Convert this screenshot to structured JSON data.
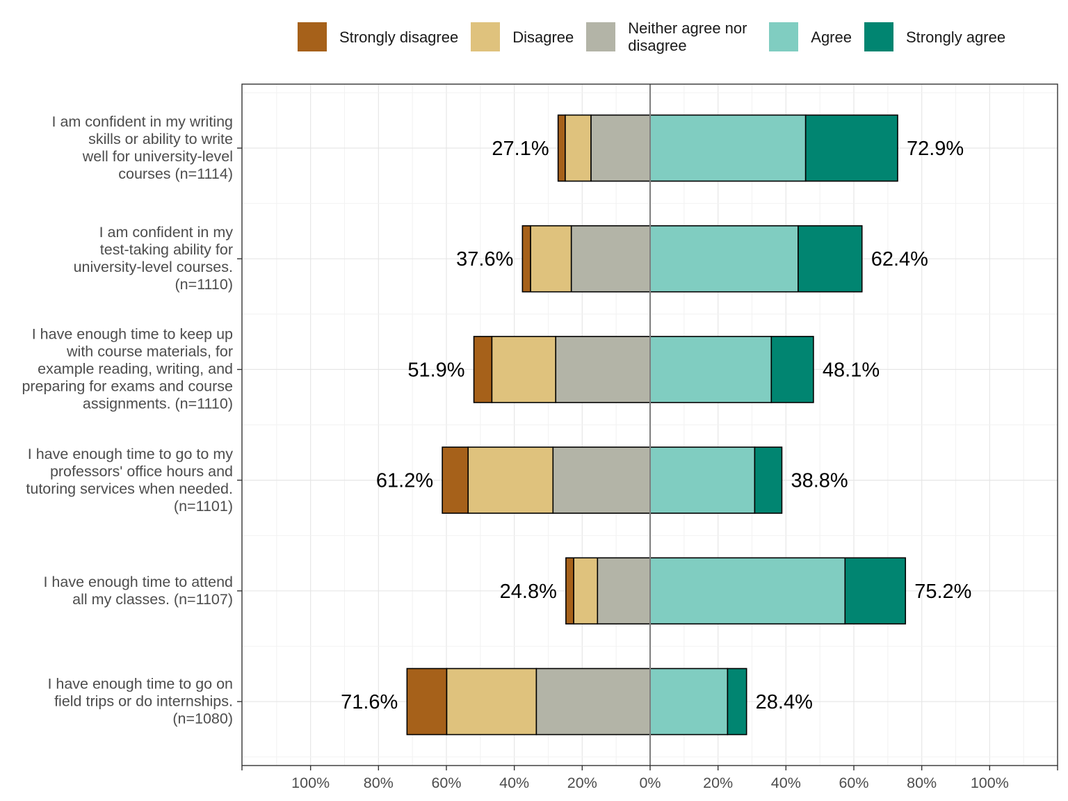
{
  "legend": [
    {
      "label": "Strongly disagree",
      "color": "#A6611A"
    },
    {
      "label": "Disagree",
      "color": "#DFC27D"
    },
    {
      "label": "Neither agree nor disagree",
      "color": "#B3B4A7"
    },
    {
      "label": "Agree",
      "color": "#80CDC1"
    },
    {
      "label": "Strongly agree",
      "color": "#018571"
    }
  ],
  "chart_data": {
    "type": "bar",
    "orientation": "horizontal",
    "stacked": "diverging",
    "xlabel": "",
    "ylabel": "",
    "xlim": [
      -120,
      120
    ],
    "x_ticks": [
      -100,
      -80,
      -60,
      -40,
      -20,
      0,
      20,
      40,
      60,
      80,
      100
    ],
    "x_tick_labels": [
      "100%",
      "80%",
      "60%",
      "40%",
      "20%",
      "0%",
      "20%",
      "40%",
      "60%",
      "80%",
      "100%"
    ],
    "grid": true,
    "legend_position": "top",
    "categories": [
      {
        "lines": [
          "I am confident in my writing",
          "skills or ability to write",
          "well for university-level",
          "courses (n=1114)"
        ]
      },
      {
        "lines": [
          "I am confident in my",
          "test-taking ability for",
          "university-level courses.",
          "(n=1110)"
        ]
      },
      {
        "lines": [
          "I have enough time to keep up",
          "with course materials, for",
          "example reading, writing, and",
          "preparing for exams and course",
          "assignments. (n=1110)"
        ]
      },
      {
        "lines": [
          "I have enough time to go to my",
          "professors' office hours and",
          "tutoring services when needed.",
          "(n=1101)"
        ]
      },
      {
        "lines": [
          "I have enough time to attend",
          "all my classes. (n=1107)"
        ]
      },
      {
        "lines": [
          "I have enough time to go on",
          "field trips or do internships.",
          "(n=1080)"
        ]
      }
    ],
    "series": [
      {
        "name": "Strongly disagree",
        "values": [
          2.1,
          2.4,
          5.3,
          7.6,
          2.3,
          11.7
        ]
      },
      {
        "name": "Disagree",
        "values": [
          7.6,
          12.0,
          18.8,
          25.0,
          7.0,
          26.4
        ]
      },
      {
        "name": "Neither agree nor disagree",
        "values": [
          17.4,
          23.2,
          27.8,
          28.6,
          15.5,
          33.5
        ]
      },
      {
        "name": "Agree",
        "values": [
          45.8,
          43.6,
          35.7,
          30.8,
          57.4,
          22.8
        ]
      },
      {
        "name": "Strongly agree",
        "values": [
          27.1,
          18.8,
          12.4,
          8.0,
          17.8,
          5.6
        ]
      }
    ],
    "negative_totals": [
      "27.1%",
      "37.6%",
      "51.9%",
      "61.2%",
      "24.8%",
      "71.6%"
    ],
    "positive_totals": [
      "72.9%",
      "62.4%",
      "48.1%",
      "38.8%",
      "75.2%",
      "28.4%"
    ]
  }
}
